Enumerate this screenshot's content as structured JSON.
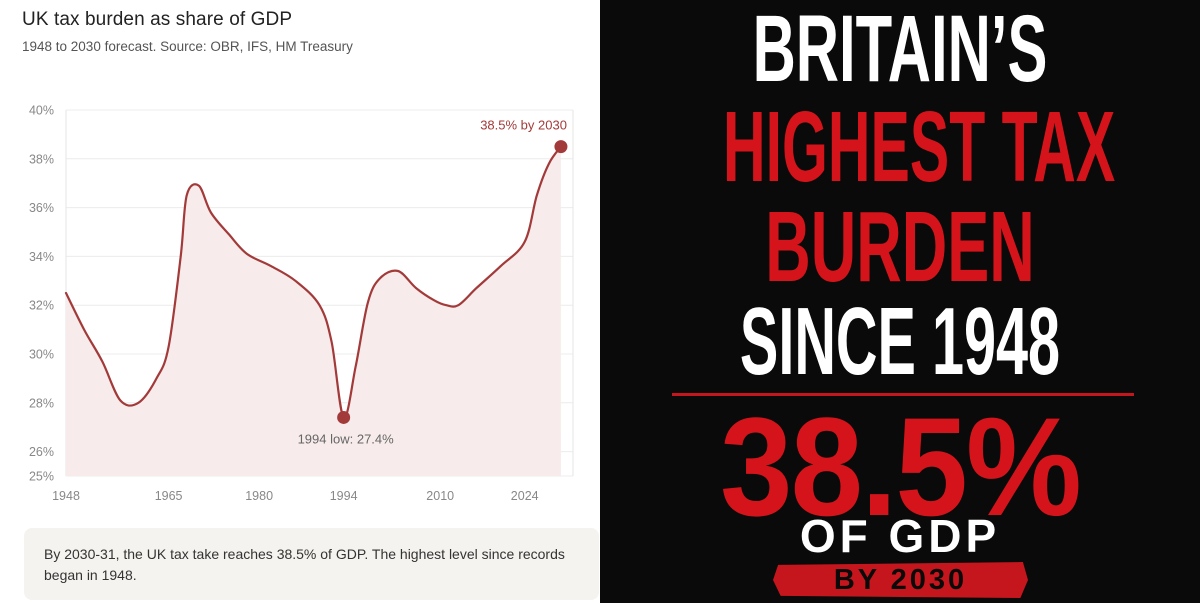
{
  "left": {
    "title": "UK tax burden as share of GDP",
    "subtitle": "1948 to 2030 forecast. Source: OBR, IFS, HM Treasury",
    "caption": "By 2030-31, the UK tax take reaches 38.5% of GDP. The highest level since records began in 1948."
  },
  "chart_data": {
    "type": "area",
    "title": "UK tax burden as share of GDP",
    "subtitle": "1948 to 2030 forecast. Source: OBR, IFS, HM Treasury",
    "xlabel": "",
    "ylabel": "",
    "xlim": [
      1948,
      2032
    ],
    "ylim": [
      25,
      40
    ],
    "x_ticks": [
      1948,
      1965,
      1980,
      1994,
      2010,
      2024
    ],
    "y_ticks": [
      25,
      26,
      28,
      30,
      32,
      34,
      36,
      38,
      40
    ],
    "y_tick_labels": [
      "25%",
      "26%",
      "28%",
      "30%",
      "32%",
      "34%",
      "36%",
      "38%",
      "40%"
    ],
    "grid": true,
    "color": "#a33a3a",
    "fill_color": "#f7eceb",
    "series": [
      {
        "x": [
          1948,
          1951,
          1954,
          1957,
          1960,
          1963,
          1965,
          1967,
          1968,
          1970,
          1972,
          1975,
          1978,
          1982,
          1986,
          1990,
          1992,
          1994,
          1996,
          1998,
          2000,
          2003,
          2006,
          2009,
          2011,
          2013,
          2016,
          2020,
          2024,
          2026,
          2028,
          2030
        ],
        "y": [
          32.5,
          31.0,
          29.7,
          28.1,
          28.0,
          29.0,
          30.3,
          34.0,
          36.5,
          36.9,
          35.8,
          34.9,
          34.1,
          33.6,
          33.0,
          32.0,
          30.5,
          27.4,
          29.5,
          32.1,
          33.1,
          33.4,
          32.7,
          32.2,
          32.0,
          32.0,
          32.7,
          33.6,
          34.6,
          36.5,
          37.8,
          38.5
        ]
      }
    ],
    "annotations": [
      {
        "x": 1994,
        "y": 27.4,
        "text": "1994 low: 27.4%"
      },
      {
        "x": 2030,
        "y": 38.5,
        "text": "38.5% by 2030"
      }
    ]
  },
  "poster": {
    "line1": "BRITAIN’S",
    "line2": "HIGHEST TAX",
    "line3": "BURDEN",
    "line4": "SINCE 1948",
    "big_value": "38.5%",
    "of_gdp": "OF GDP",
    "by_year": "BY 2030",
    "colors": {
      "background": "#0a0a0a",
      "red": "#d4141a",
      "white": "#ffffff"
    }
  }
}
